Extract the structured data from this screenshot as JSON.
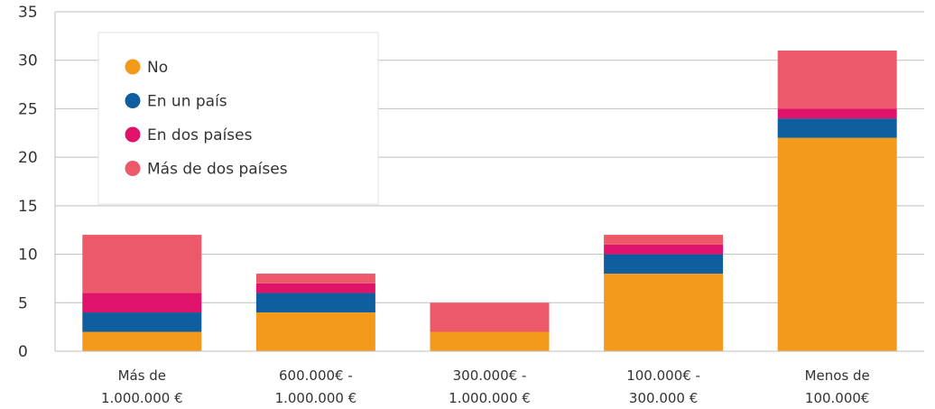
{
  "chart_data": {
    "type": "bar",
    "stacked": true,
    "categories": [
      [
        "Más de",
        "1.000.000 €"
      ],
      [
        "600.000€ -",
        "1.000.000 €"
      ],
      [
        "300.000€ -",
        "1.000.000 €"
      ],
      [
        "100.000€ -",
        "300.000 €"
      ],
      [
        "Menos de",
        "100.000€"
      ]
    ],
    "series": [
      {
        "name": "No",
        "color": "#F39A1A",
        "values": [
          2,
          4,
          2,
          8,
          22
        ]
      },
      {
        "name": "En un país",
        "color": "#0F5EA0",
        "values": [
          2,
          2,
          0,
          2,
          2
        ]
      },
      {
        "name": "En dos países",
        "color": "#E0136B",
        "values": [
          2,
          1,
          0,
          1,
          1
        ]
      },
      {
        "name": "Más de dos países",
        "color": "#EC5A6A",
        "values": [
          6,
          1,
          3,
          1,
          6
        ]
      }
    ],
    "yticks": [
      0,
      5,
      10,
      15,
      20,
      25,
      30,
      35
    ],
    "ylim": [
      0,
      35
    ],
    "grid": true,
    "legend_position": "top-left"
  }
}
